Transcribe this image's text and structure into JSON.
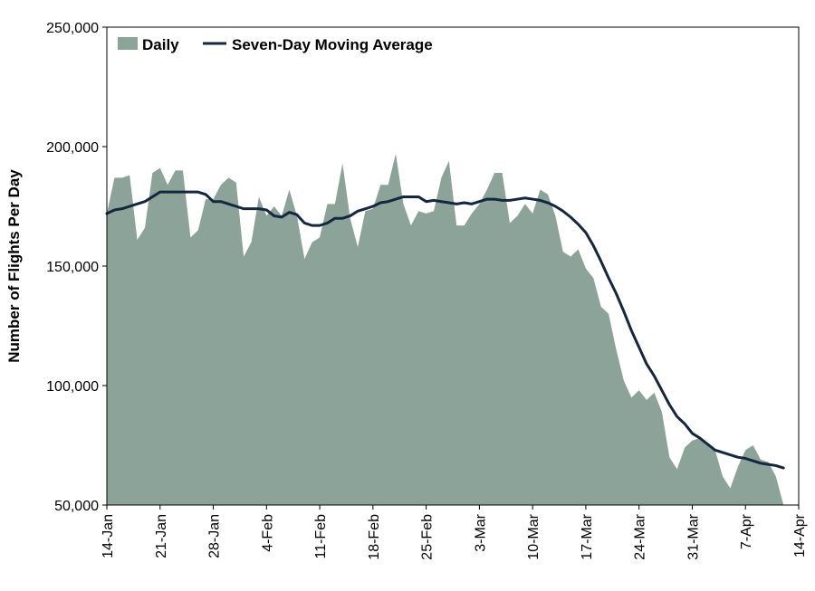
{
  "chart_data": {
    "type": "area",
    "xlabel": "",
    "ylabel": "Number of Flights Per Day",
    "ylim": [
      50000,
      250000
    ],
    "y_ticks": [
      50000,
      100000,
      150000,
      200000,
      250000
    ],
    "y_tick_labels": [
      "50,000",
      "100,000",
      "150,000",
      "200,000",
      "250,000"
    ],
    "x_start": "14-Jan",
    "x_ticks": [
      0,
      7,
      14,
      21,
      28,
      35,
      42,
      49,
      56,
      63,
      70,
      77,
      84,
      91
    ],
    "x_tick_labels": [
      "14-Jan",
      "21-Jan",
      "28-Jan",
      "4-Feb",
      "11-Feb",
      "18-Feb",
      "25-Feb",
      "3-Mar",
      "10-Mar",
      "17-Mar",
      "24-Mar",
      "31-Mar",
      "7-Apr",
      "14-Apr"
    ],
    "grid": false,
    "legend_position": "top-left",
    "colors": {
      "daily": "#8ca399",
      "average": "#15273f"
    },
    "series": [
      {
        "name": "Daily",
        "kind": "area",
        "values": [
          172000,
          187000,
          187000,
          188000,
          161000,
          166000,
          189000,
          191000,
          184000,
          190000,
          190000,
          162000,
          165000,
          178000,
          178000,
          184000,
          187000,
          185000,
          154000,
          160000,
          179000,
          171000,
          175000,
          171000,
          182000,
          171000,
          153000,
          160000,
          162000,
          176000,
          176000,
          193000,
          170000,
          158000,
          173000,
          174000,
          184000,
          184000,
          197000,
          176000,
          167000,
          173000,
          172000,
          173000,
          187000,
          194000,
          167000,
          167000,
          172000,
          176000,
          182000,
          189000,
          189000,
          168000,
          171000,
          176000,
          172000,
          182000,
          180000,
          171000,
          156000,
          154000,
          157000,
          149000,
          145000,
          133000,
          130000,
          115000,
          102000,
          95000,
          98000,
          94000,
          97000,
          89000,
          70000,
          65000,
          74000,
          77000,
          78000,
          75000,
          73000,
          62000,
          57000,
          66000,
          73000,
          75000,
          69000,
          68000,
          62000,
          49000
        ]
      },
      {
        "name": "Seven-Day Moving Average",
        "kind": "line",
        "values": [
          172000,
          173500,
          174000,
          175000,
          176000,
          177000,
          179000,
          181000,
          181000,
          181000,
          181000,
          181000,
          181000,
          180000,
          177000,
          177000,
          176000,
          175000,
          174000,
          174000,
          174000,
          173500,
          171000,
          170500,
          172500,
          171500,
          168000,
          167000,
          167000,
          168000,
          170000,
          170000,
          171000,
          173000,
          174000,
          175000,
          176500,
          177000,
          178000,
          179000,
          179000,
          179000,
          177000,
          177500,
          177000,
          176500,
          176000,
          176500,
          176000,
          177000,
          178000,
          178000,
          177500,
          177500,
          178000,
          178500,
          178000,
          177500,
          176500,
          175000,
          173000,
          170500,
          167500,
          164000,
          158500,
          152000,
          145000,
          138500,
          131000,
          123000,
          116000,
          109000,
          104000,
          98000,
          92000,
          87000,
          84000,
          80000,
          78000,
          75500,
          73000,
          72000,
          71000,
          70000,
          69500,
          68500,
          67500,
          67000,
          66500,
          65500
        ]
      }
    ]
  }
}
